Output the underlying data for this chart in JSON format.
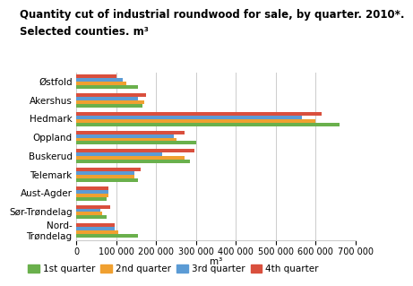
{
  "title_line1": "Quantity cut of industrial roundwood for sale, by quarter. 2010*.",
  "title_line2": "Selected counties. m³",
  "counties": [
    "Østfold",
    "Akershus",
    "Hedmark",
    "Oppland",
    "Buskerud",
    "Telemark",
    "Aust-Agder",
    "Sør-Trøndelag",
    "Nord-\nTrøndelag"
  ],
  "quarters": [
    "1st quarter",
    "2nd quarter",
    "3rd quarter",
    "4th quarter"
  ],
  "colors": [
    "#6ab04c",
    "#f0a030",
    "#5b9bd5",
    "#d94f3d"
  ],
  "data": {
    "1st quarter": [
      155000,
      165000,
      660000,
      300000,
      285000,
      155000,
      75000,
      75000,
      155000
    ],
    "2nd quarter": [
      125000,
      170000,
      600000,
      250000,
      270000,
      145000,
      80000,
      65000,
      105000
    ],
    "3rd quarter": [
      115000,
      155000,
      565000,
      245000,
      215000,
      145000,
      80000,
      60000,
      95000
    ],
    "4th quarter": [
      100000,
      175000,
      615000,
      270000,
      295000,
      160000,
      80000,
      85000,
      95000
    ]
  },
  "xlim": [
    0,
    700000
  ],
  "xticks": [
    0,
    100000,
    200000,
    300000,
    400000,
    500000,
    600000,
    700000
  ],
  "xlabel": "m³",
  "background_color": "#ffffff",
  "grid_color": "#cccccc",
  "title_fontsize": 8.5,
  "tick_fontsize": 7.5,
  "legend_fontsize": 7.5
}
